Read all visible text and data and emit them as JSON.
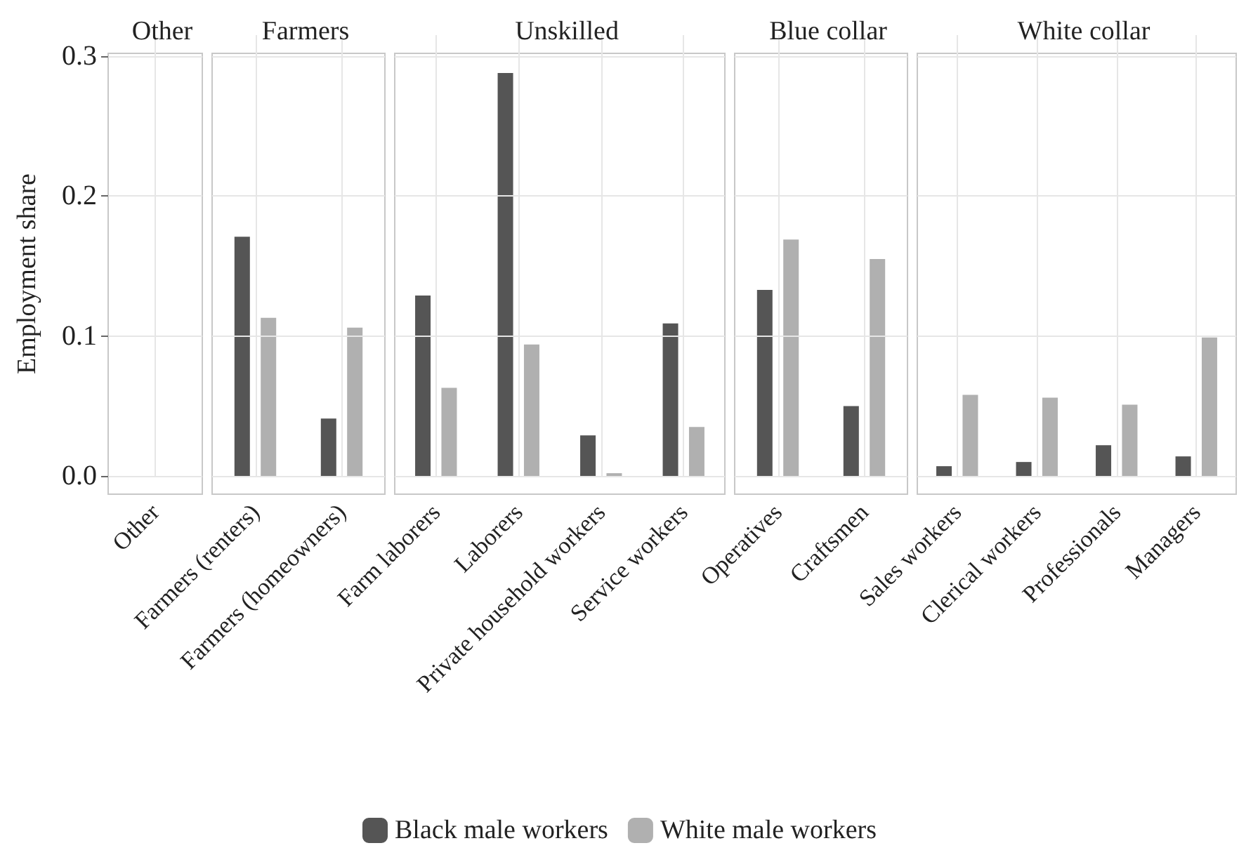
{
  "chart_data": [
    {
      "type": "bar",
      "title": "Other",
      "ylabel": "Employment share",
      "categories": [
        "Other"
      ],
      "ylim": [
        -0.013,
        0.302
      ],
      "yticks": [
        {
          "value": 0,
          "label": "0.0"
        },
        0.1,
        0.2,
        0.3
      ],
      "grid": true,
      "legend": "bottom",
      "series": [
        {
          "name": "Black male workers",
          "color": "#555555",
          "values": [
            0
          ]
        },
        {
          "name": "White male workers",
          "color": "#b0b0b0",
          "values": [
            0
          ]
        }
      ]
    },
    {
      "type": "bar",
      "title": "Farmers",
      "categories": [
        "Farmers (renters)",
        "Farmers (homeowners)"
      ],
      "ylim": [
        -0.013,
        0.302
      ],
      "yticks": [
        0,
        0.1,
        0.2,
        0.3
      ],
      "grid": true,
      "tick_labels": "x",
      "series": [
        {
          "color": "#555555",
          "values": [
            0.171,
            0.041
          ]
        },
        {
          "color": "#b0b0b0",
          "values": [
            0.113,
            0.106
          ]
        }
      ]
    },
    {
      "type": "bar",
      "title": "Unskilled",
      "categories": [
        "Farm laborers",
        "Laborers",
        "Private household workers",
        "Service workers"
      ],
      "ylim": [
        -0.013,
        0.302
      ],
      "yticks": [
        0,
        0.1,
        0.2,
        0.3
      ],
      "grid": true,
      "tick_labels": "x",
      "series": [
        {
          "color": "#555555",
          "values": [
            0.129,
            0.288,
            0.029,
            0.109
          ]
        },
        {
          "color": "#b0b0b0",
          "values": [
            0.063,
            0.094,
            0.002,
            0.035
          ]
        }
      ]
    },
    {
      "type": "bar",
      "title": "Blue collar",
      "categories": [
        "Operatives",
        "Craftsmen"
      ],
      "ylim": [
        -0.013,
        0.302
      ],
      "yticks": [
        0,
        0.1,
        0.2,
        0.3
      ],
      "grid": true,
      "tick_labels": "x",
      "series": [
        {
          "color": "#555555",
          "values": [
            0.133,
            0.05
          ]
        },
        {
          "color": "#b0b0b0",
          "values": [
            0.169,
            0.155
          ]
        }
      ]
    },
    {
      "type": "bar",
      "title": "White collar",
      "categories": [
        "Sales workers",
        "Clerical workers",
        "Professionals",
        "Managers"
      ],
      "ylim": [
        -0.013,
        0.302
      ],
      "yticks": [
        0,
        0.1,
        0.2,
        0.3
      ],
      "grid": true,
      "tick_labels": "x",
      "series": [
        {
          "color": "#555555",
          "values": [
            0.007,
            0.01,
            0.022,
            0.014
          ]
        },
        {
          "color": "#b0b0b0",
          "values": [
            0.058,
            0.056,
            0.051,
            0.099
          ]
        }
      ]
    }
  ]
}
